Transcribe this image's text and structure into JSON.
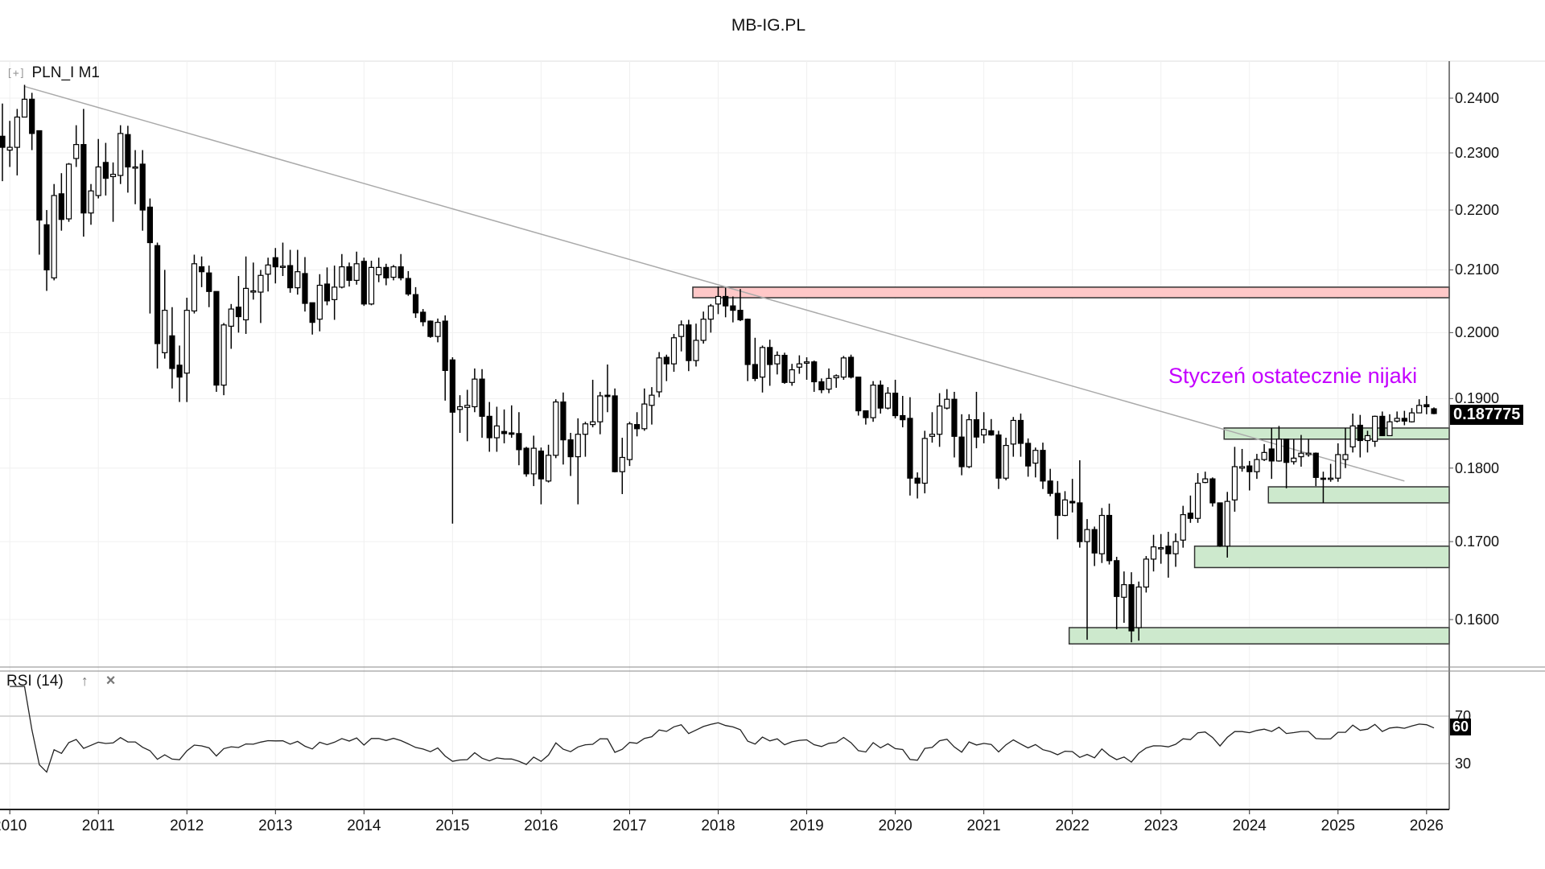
{
  "title": "MB-IG.PL",
  "legend": {
    "expand_icon": "[+]",
    "symbol": "PLN_I M1"
  },
  "rsi_legend": {
    "label": "RSI (14)",
    "up_icon": "↑",
    "close_icon": "×"
  },
  "annotation": "Styczeń ostatecznie nijaki",
  "last_price": "0.187775",
  "rsi_last": "60",
  "colors": {
    "up": "#ffffff",
    "down": "#000000",
    "resistance_zone": "#ffc8c8",
    "support_zone": "#cde9cd",
    "annotation": "#c400ff",
    "trendline": "#aaaaaa"
  },
  "chart_data": {
    "type": "candlestick",
    "title": "MB-IG.PL",
    "symbol": "PLN_I",
    "timeframe": "M1",
    "scale": "log",
    "ylim": [
      0.155,
      0.245
    ],
    "y_ticks": [
      "0.2400",
      "0.2300",
      "0.2200",
      "0.2100",
      "0.2000",
      "0.1900",
      "0.1800",
      "0.1700",
      "0.1600"
    ],
    "x_ticks": [
      {
        "label": "2010",
        "candle": 1
      },
      {
        "label": "2011",
        "candle": 13
      },
      {
        "label": "2012",
        "candle": 25
      },
      {
        "label": "2013",
        "candle": 37
      },
      {
        "label": "2014",
        "candle": 49
      },
      {
        "label": "2015",
        "candle": 61
      },
      {
        "label": "2016",
        "candle": 73
      },
      {
        "label": "2017",
        "candle": 85
      },
      {
        "label": "2018",
        "candle": 97
      },
      {
        "label": "2019",
        "candle": 109
      },
      {
        "label": "2020",
        "candle": 121
      },
      {
        "label": "2021",
        "candle": 133
      },
      {
        "label": "2022",
        "candle": 145
      },
      {
        "label": "2023",
        "candle": 157
      },
      {
        "label": "2024",
        "candle": 169
      },
      {
        "label": "2025",
        "candle": 181
      },
      {
        "label": "2026",
        "candle": 193
      }
    ],
    "candle_format": [
      "open",
      "high",
      "low",
      "close"
    ],
    "candles": [
      [
        0.233,
        0.239,
        0.225,
        0.231
      ],
      [
        0.2305,
        0.2358,
        0.2275,
        0.231
      ],
      [
        0.231,
        0.238,
        0.226,
        0.2365
      ],
      [
        0.2365,
        0.2425,
        0.2365,
        0.2398
      ],
      [
        0.2398,
        0.241,
        0.2305,
        0.2335
      ],
      [
        0.234,
        0.234,
        0.2125,
        0.2183
      ],
      [
        0.2175,
        0.22,
        0.2066,
        0.21
      ],
      [
        0.2087,
        0.2245,
        0.2083,
        0.2225
      ],
      [
        0.2228,
        0.2264,
        0.2165,
        0.2184
      ],
      [
        0.2185,
        0.2282,
        0.218,
        0.228
      ],
      [
        0.229,
        0.235,
        0.2275,
        0.2315
      ],
      [
        0.2315,
        0.238,
        0.2155,
        0.2195
      ],
      [
        0.2195,
        0.2245,
        0.2175,
        0.2233
      ],
      [
        0.2225,
        0.2325,
        0.222,
        0.2275
      ],
      [
        0.2283,
        0.2318,
        0.2225,
        0.2255
      ],
      [
        0.2258,
        0.2283,
        0.218,
        0.2262
      ],
      [
        0.226,
        0.235,
        0.2245,
        0.2335
      ],
      [
        0.2333,
        0.2349,
        0.223,
        0.2275
      ],
      [
        0.2275,
        0.2305,
        0.221,
        0.2275
      ],
      [
        0.228,
        0.2305,
        0.2165,
        0.22
      ],
      [
        0.2205,
        0.222,
        0.203,
        0.2145
      ],
      [
        0.214,
        0.2145,
        0.1945,
        0.1983
      ],
      [
        0.1969,
        0.21,
        0.196,
        0.2035
      ],
      [
        0.1995,
        0.204,
        0.1915,
        0.1945
      ],
      [
        0.195,
        0.198,
        0.1895,
        0.1932
      ],
      [
        0.1938,
        0.2055,
        0.1895,
        0.2035
      ],
      [
        0.2034,
        0.2125,
        0.203,
        0.211
      ],
      [
        0.2105,
        0.2122,
        0.2072,
        0.2097
      ],
      [
        0.2095,
        0.2107,
        0.204,
        0.2065
      ],
      [
        0.2065,
        0.2065,
        0.191,
        0.192
      ],
      [
        0.192,
        0.2015,
        0.1905,
        0.2012
      ],
      [
        0.201,
        0.2045,
        0.1975,
        0.2037
      ],
      [
        0.204,
        0.209,
        0.2,
        0.2025
      ],
      [
        0.202,
        0.2122,
        0.1998,
        0.207
      ],
      [
        0.2064,
        0.2112,
        0.2052,
        0.2066
      ],
      [
        0.2064,
        0.21,
        0.2015,
        0.2091
      ],
      [
        0.2093,
        0.212,
        0.2065,
        0.2108
      ],
      [
        0.212,
        0.2136,
        0.2078,
        0.2105
      ],
      [
        0.2106,
        0.2145,
        0.209,
        0.2106
      ],
      [
        0.2107,
        0.2133,
        0.2063,
        0.2071
      ],
      [
        0.2071,
        0.2133,
        0.206,
        0.2097
      ],
      [
        0.2094,
        0.2121,
        0.2033,
        0.2046
      ],
      [
        0.2047,
        0.2047,
        0.1997,
        0.2016
      ],
      [
        0.2021,
        0.2093,
        0.2002,
        0.2075
      ],
      [
        0.2077,
        0.2104,
        0.2043,
        0.205
      ],
      [
        0.2052,
        0.2107,
        0.202,
        0.2072
      ],
      [
        0.2072,
        0.2126,
        0.207,
        0.2105
      ],
      [
        0.2105,
        0.2112,
        0.2073,
        0.2083
      ],
      [
        0.2083,
        0.213,
        0.2076,
        0.211
      ],
      [
        0.2114,
        0.212,
        0.2042,
        0.2045
      ],
      [
        0.2045,
        0.2115,
        0.2043,
        0.2104
      ],
      [
        0.2092,
        0.212,
        0.208,
        0.2104
      ],
      [
        0.2104,
        0.211,
        0.2075,
        0.2087
      ],
      [
        0.2088,
        0.2108,
        0.2083,
        0.2105
      ],
      [
        0.2105,
        0.2126,
        0.2083,
        0.2087
      ],
      [
        0.2086,
        0.2098,
        0.2058,
        0.2061
      ],
      [
        0.206,
        0.2072,
        0.2023,
        0.2031
      ],
      [
        0.2032,
        0.2037,
        0.201,
        0.2017
      ],
      [
        0.2018,
        0.2019,
        0.1992,
        0.1994
      ],
      [
        0.1994,
        0.2022,
        0.1985,
        0.2016
      ],
      [
        0.2018,
        0.2027,
        0.1897,
        0.1942
      ],
      [
        0.1958,
        0.1962,
        0.1724,
        0.188
      ],
      [
        0.1884,
        0.1905,
        0.185,
        0.1888
      ],
      [
        0.1887,
        0.1913,
        0.1838,
        0.189
      ],
      [
        0.1888,
        0.1945,
        0.188,
        0.1929
      ],
      [
        0.1929,
        0.1944,
        0.1843,
        0.1874
      ],
      [
        0.1874,
        0.1895,
        0.1823,
        0.1843
      ],
      [
        0.1843,
        0.1888,
        0.1823,
        0.186
      ],
      [
        0.1852,
        0.1884,
        0.1835,
        0.1849
      ],
      [
        0.185,
        0.189,
        0.1843,
        0.1848
      ],
      [
        0.1849,
        0.188,
        0.1804,
        0.1826
      ],
      [
        0.1828,
        0.183,
        0.1788,
        0.1792
      ],
      [
        0.1792,
        0.1846,
        0.1775,
        0.1828
      ],
      [
        0.1824,
        0.1829,
        0.175,
        0.1785
      ],
      [
        0.1782,
        0.1833,
        0.178,
        0.1818
      ],
      [
        0.1818,
        0.1899,
        0.1814,
        0.1895
      ],
      [
        0.1895,
        0.1909,
        0.1805,
        0.184
      ],
      [
        0.184,
        0.185,
        0.1789,
        0.1816
      ],
      [
        0.1816,
        0.1871,
        0.175,
        0.1848
      ],
      [
        0.1848,
        0.1866,
        0.1816,
        0.1863
      ],
      [
        0.1862,
        0.1928,
        0.1858,
        0.1866
      ],
      [
        0.1866,
        0.191,
        0.1848,
        0.1904
      ],
      [
        0.1905,
        0.1951,
        0.188,
        0.1903
      ],
      [
        0.1904,
        0.1915,
        0.1794,
        0.1795
      ],
      [
        0.1795,
        0.1843,
        0.1764,
        0.1815
      ],
      [
        0.1812,
        0.1866,
        0.1803,
        0.1863
      ],
      [
        0.1862,
        0.188,
        0.1845,
        0.1856
      ],
      [
        0.1856,
        0.1915,
        0.1853,
        0.1892
      ],
      [
        0.189,
        0.1917,
        0.1862,
        0.1905
      ],
      [
        0.191,
        0.197,
        0.1902,
        0.1961
      ],
      [
        0.1962,
        0.1966,
        0.1926,
        0.1952
      ],
      [
        0.1952,
        0.1998,
        0.194,
        0.1992
      ],
      [
        0.1994,
        0.2019,
        0.1971,
        0.2012
      ],
      [
        0.2012,
        0.202,
        0.1941,
        0.1957
      ],
      [
        0.1957,
        0.2014,
        0.1948,
        0.1988
      ],
      [
        0.1988,
        0.2033,
        0.1983,
        0.2021
      ],
      [
        0.2021,
        0.2045,
        0.2,
        0.2042
      ],
      [
        0.2045,
        0.2073,
        0.2029,
        0.2057
      ],
      [
        0.2057,
        0.2071,
        0.2024,
        0.2042
      ],
      [
        0.2042,
        0.2057,
        0.2016,
        0.2035
      ],
      [
        0.2035,
        0.2069,
        0.2018,
        0.202
      ],
      [
        0.2021,
        0.2022,
        0.1926,
        0.1951
      ],
      [
        0.1951,
        0.1992,
        0.1926,
        0.193
      ],
      [
        0.1932,
        0.198,
        0.1909,
        0.1977
      ],
      [
        0.1977,
        0.1989,
        0.1919,
        0.1951
      ],
      [
        0.1952,
        0.1971,
        0.1936,
        0.1965
      ],
      [
        0.1965,
        0.1969,
        0.1922,
        0.1924
      ],
      [
        0.1924,
        0.1952,
        0.1919,
        0.1943
      ],
      [
        0.1947,
        0.1965,
        0.1937,
        0.1952
      ],
      [
        0.1953,
        0.1962,
        0.1928,
        0.1955
      ],
      [
        0.1955,
        0.1957,
        0.191,
        0.1925
      ],
      [
        0.1925,
        0.193,
        0.1908,
        0.1913
      ],
      [
        0.1914,
        0.1945,
        0.1908,
        0.193
      ],
      [
        0.1931,
        0.1936,
        0.1916,
        0.1934
      ],
      [
        0.1932,
        0.1964,
        0.1928,
        0.1961
      ],
      [
        0.1962,
        0.1966,
        0.193,
        0.1932
      ],
      [
        0.1932,
        0.1932,
        0.1875,
        0.1882
      ],
      [
        0.1882,
        0.1882,
        0.1862,
        0.1872
      ],
      [
        0.1872,
        0.1926,
        0.1866,
        0.192
      ],
      [
        0.192,
        0.1927,
        0.1878,
        0.1886
      ],
      [
        0.1886,
        0.1917,
        0.1884,
        0.1908
      ],
      [
        0.1908,
        0.1928,
        0.1871,
        0.1875
      ],
      [
        0.1875,
        0.1904,
        0.1858,
        0.1869
      ],
      [
        0.1871,
        0.1902,
        0.1762,
        0.1786
      ],
      [
        0.1786,
        0.1794,
        0.1758,
        0.1779
      ],
      [
        0.1779,
        0.1853,
        0.1765,
        0.1842
      ],
      [
        0.1845,
        0.188,
        0.1836,
        0.1848
      ],
      [
        0.1848,
        0.1908,
        0.183,
        0.1889
      ],
      [
        0.1886,
        0.1914,
        0.1884,
        0.1899
      ],
      [
        0.1899,
        0.191,
        0.1815,
        0.1845
      ],
      [
        0.1844,
        0.1877,
        0.179,
        0.1802
      ],
      [
        0.1802,
        0.1877,
        0.18,
        0.1869
      ],
      [
        0.1869,
        0.191,
        0.1828,
        0.1844
      ],
      [
        0.1847,
        0.188,
        0.1835,
        0.1855
      ],
      [
        0.1853,
        0.187,
        0.1846,
        0.1847
      ],
      [
        0.1847,
        0.1853,
        0.1771,
        0.1786
      ],
      [
        0.1786,
        0.1843,
        0.1783,
        0.1832
      ],
      [
        0.1834,
        0.1873,
        0.1816,
        0.1868
      ],
      [
        0.1868,
        0.1878,
        0.1816,
        0.1835
      ],
      [
        0.1835,
        0.1842,
        0.1788,
        0.1803
      ],
      [
        0.1807,
        0.1829,
        0.1787,
        0.1825
      ],
      [
        0.1825,
        0.1836,
        0.1771,
        0.1782
      ],
      [
        0.1782,
        0.1799,
        0.1761,
        0.1765
      ],
      [
        0.1765,
        0.1782,
        0.1703,
        0.1735
      ],
      [
        0.1735,
        0.1768,
        0.1734,
        0.1756
      ],
      [
        0.1754,
        0.1785,
        0.1739,
        0.1752
      ],
      [
        0.1752,
        0.1811,
        0.1692,
        0.17
      ],
      [
        0.17,
        0.173,
        0.1575,
        0.1716
      ],
      [
        0.1716,
        0.172,
        0.1668,
        0.1685
      ],
      [
        0.1684,
        0.1745,
        0.1672,
        0.1735
      ],
      [
        0.1735,
        0.1751,
        0.167,
        0.1675
      ],
      [
        0.1675,
        0.168,
        0.1588,
        0.1629
      ],
      [
        0.1628,
        0.1661,
        0.1596,
        0.1644
      ],
      [
        0.1644,
        0.166,
        0.1572,
        0.1586
      ],
      [
        0.159,
        0.1648,
        0.1574,
        0.1641
      ],
      [
        0.1641,
        0.1681,
        0.1634,
        0.1677
      ],
      [
        0.1677,
        0.1709,
        0.1661,
        0.1693
      ],
      [
        0.1691,
        0.171,
        0.1671,
        0.1692
      ],
      [
        0.1694,
        0.1713,
        0.1653,
        0.1684
      ],
      [
        0.1684,
        0.1711,
        0.1667,
        0.17
      ],
      [
        0.1702,
        0.1748,
        0.1692,
        0.1736
      ],
      [
        0.1738,
        0.1762,
        0.1725,
        0.1731
      ],
      [
        0.1731,
        0.1793,
        0.1725,
        0.1779
      ],
      [
        0.178,
        0.1795,
        0.1779,
        0.1785
      ],
      [
        0.1785,
        0.1787,
        0.1747,
        0.1752
      ],
      [
        0.1752,
        0.1752,
        0.1693,
        0.1694
      ],
      [
        0.1694,
        0.1767,
        0.1679,
        0.1754
      ],
      [
        0.1756,
        0.183,
        0.174,
        0.1802
      ],
      [
        0.18,
        0.1827,
        0.1795,
        0.1802
      ],
      [
        0.1803,
        0.181,
        0.1769,
        0.1795
      ],
      [
        0.1795,
        0.182,
        0.1785,
        0.1812
      ],
      [
        0.1812,
        0.1834,
        0.181,
        0.1822
      ],
      [
        0.1827,
        0.1857,
        0.1785,
        0.181
      ],
      [
        0.181,
        0.186,
        0.1809,
        0.1841
      ],
      [
        0.1841,
        0.1841,
        0.1772,
        0.1808
      ],
      [
        0.1809,
        0.1841,
        0.1805,
        0.1814
      ],
      [
        0.1816,
        0.1847,
        0.1802,
        0.1821
      ],
      [
        0.1819,
        0.1841,
        0.1816,
        0.1821
      ],
      [
        0.1821,
        0.1822,
        0.1775,
        0.1787
      ],
      [
        0.1786,
        0.1795,
        0.1752,
        0.1785
      ],
      [
        0.1785,
        0.1806,
        0.1781,
        0.1786
      ],
      [
        0.1786,
        0.1835,
        0.1781,
        0.1819
      ],
      [
        0.1812,
        0.1857,
        0.18,
        0.1819
      ],
      [
        0.183,
        0.1878,
        0.1822,
        0.186
      ],
      [
        0.1861,
        0.1876,
        0.1815,
        0.1839
      ],
      [
        0.1839,
        0.1853,
        0.1822,
        0.1846
      ],
      [
        0.1838,
        0.1875,
        0.183,
        0.1874
      ],
      [
        0.1874,
        0.1881,
        0.1846,
        0.1846
      ],
      [
        0.1846,
        0.1877,
        0.1846,
        0.1866
      ],
      [
        0.1867,
        0.1881,
        0.1865,
        0.1871
      ],
      [
        0.1871,
        0.1882,
        0.1861,
        0.1867
      ],
      [
        0.1866,
        0.1886,
        0.1865,
        0.1879
      ],
      [
        0.1879,
        0.1899,
        0.1879,
        0.189
      ],
      [
        0.1891,
        0.1904,
        0.1877,
        0.1888
      ],
      [
        0.1885,
        0.1887,
        0.1877,
        0.1878
      ]
    ],
    "zones": [
      {
        "type": "resistance",
        "from_candle": 94,
        "low": 0.2055,
        "high": 0.2072
      },
      {
        "type": "support",
        "from_candle": 166,
        "low": 0.1841,
        "high": 0.1857
      },
      {
        "type": "support",
        "from_candle": 172,
        "low": 0.1752,
        "high": 0.1774
      },
      {
        "type": "support",
        "from_candle": 162,
        "low": 0.1666,
        "high": 0.1694
      },
      {
        "type": "support",
        "from_candle": 145,
        "low": 0.157,
        "high": 0.159
      }
    ],
    "trendline": [
      {
        "candle": 3,
        "price": 0.2422
      },
      {
        "candle": 190,
        "price": 0.1782
      }
    ],
    "rsi": {
      "period": 14,
      "levels": [
        70,
        30
      ],
      "level_labels": [
        "70",
        "30"
      ],
      "last": 60
    }
  }
}
